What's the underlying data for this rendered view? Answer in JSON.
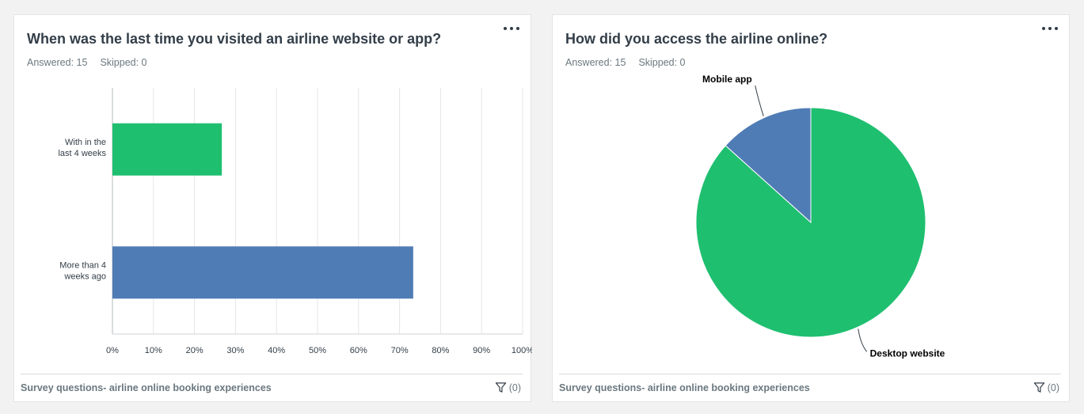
{
  "cards": [
    {
      "title": "When was the last time you visited an airline website or app?",
      "answered": "Answered: 15",
      "skipped": "Skipped: 0",
      "footer": "Survey questions- airline online booking experiences",
      "filter_count": "(0)",
      "menu_icon": "more-horizontal-icon",
      "filter_icon": "funnel-icon"
    },
    {
      "title": "How did you access the airline online?",
      "answered": "Answered: 15",
      "skipped": "Skipped: 0",
      "footer": "Survey questions- airline online booking experiences",
      "filter_count": "(0)",
      "menu_icon": "more-horizontal-icon",
      "filter_icon": "funnel-icon"
    }
  ],
  "chart_data": [
    {
      "type": "bar",
      "orientation": "horizontal",
      "categories": [
        [
          "With in the",
          "last 4 weeks"
        ],
        [
          "More than 4",
          "weeks ago"
        ]
      ],
      "values": [
        26.67,
        73.33
      ],
      "colors": [
        "#1fbf70",
        "#507cb6"
      ],
      "xlim": [
        0,
        100
      ],
      "ticks": [
        "0%",
        "10%",
        "20%",
        "30%",
        "40%",
        "50%",
        "60%",
        "70%",
        "80%",
        "90%",
        "100%"
      ],
      "grid": true
    },
    {
      "type": "pie",
      "slices": [
        {
          "label": "Mobile app",
          "value": 13.33,
          "color": "#507cb6"
        },
        {
          "label": "Desktop website",
          "value": 86.67,
          "color": "#1fbf70"
        }
      ]
    }
  ]
}
